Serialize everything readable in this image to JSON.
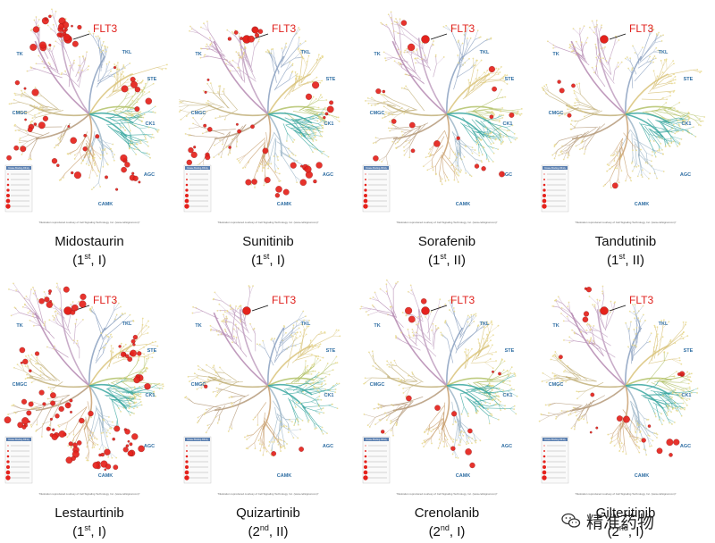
{
  "colors": {
    "hit": "#e5221c",
    "label_red": "#e0201c",
    "family_label": "#2f6ea3",
    "branches": [
      "#b58ab2",
      "#c09fc0",
      "#b59a7a",
      "#c2b07a",
      "#d9c37a",
      "#8aa0c0",
      "#9db6c8",
      "#3aa7a0",
      "#b3c26a",
      "#c9a070"
    ]
  },
  "families": [
    "TK",
    "TKL",
    "STE",
    "CMGC",
    "CK1",
    "AGC",
    "CAMK"
  ],
  "target_label": "FLT3",
  "credit_text": "Illustration reproduced courtesy of Cell Signaling Technology, Inc. (www.cellsignal.com)",
  "legend_title": "Kinase Binding Affinity",
  "panels": [
    {
      "name": "Midostaurin",
      "gen_num": "1",
      "gen_suffix": "st",
      "type": "I",
      "hits": 60
    },
    {
      "name": "Sunitinib",
      "gen_num": "1",
      "gen_suffix": "st",
      "type": "I",
      "hits": 45
    },
    {
      "name": "Sorafenib",
      "gen_num": "1",
      "gen_suffix": "st",
      "type": "II",
      "hits": 18
    },
    {
      "name": "Tandutinib",
      "gen_num": "1",
      "gen_suffix": "st",
      "type": "II",
      "hits": 6
    },
    {
      "name": "Lestaurtinib",
      "gen_num": "1",
      "gen_suffix": "st",
      "type": "I",
      "hits": 90
    },
    {
      "name": "Quizartinib",
      "gen_num": "2",
      "gen_suffix": "nd",
      "type": "II",
      "hits": 4
    },
    {
      "name": "Crenolanib",
      "gen_num": "2",
      "gen_suffix": "nd",
      "type": "I",
      "hits": 14
    },
    {
      "name": "Gilteritinib",
      "gen_num": "2",
      "gen_suffix": "nd",
      "type": "I",
      "hits": 20
    }
  ],
  "watermark": {
    "icon": "wechat-icon",
    "text": "精准药物"
  }
}
